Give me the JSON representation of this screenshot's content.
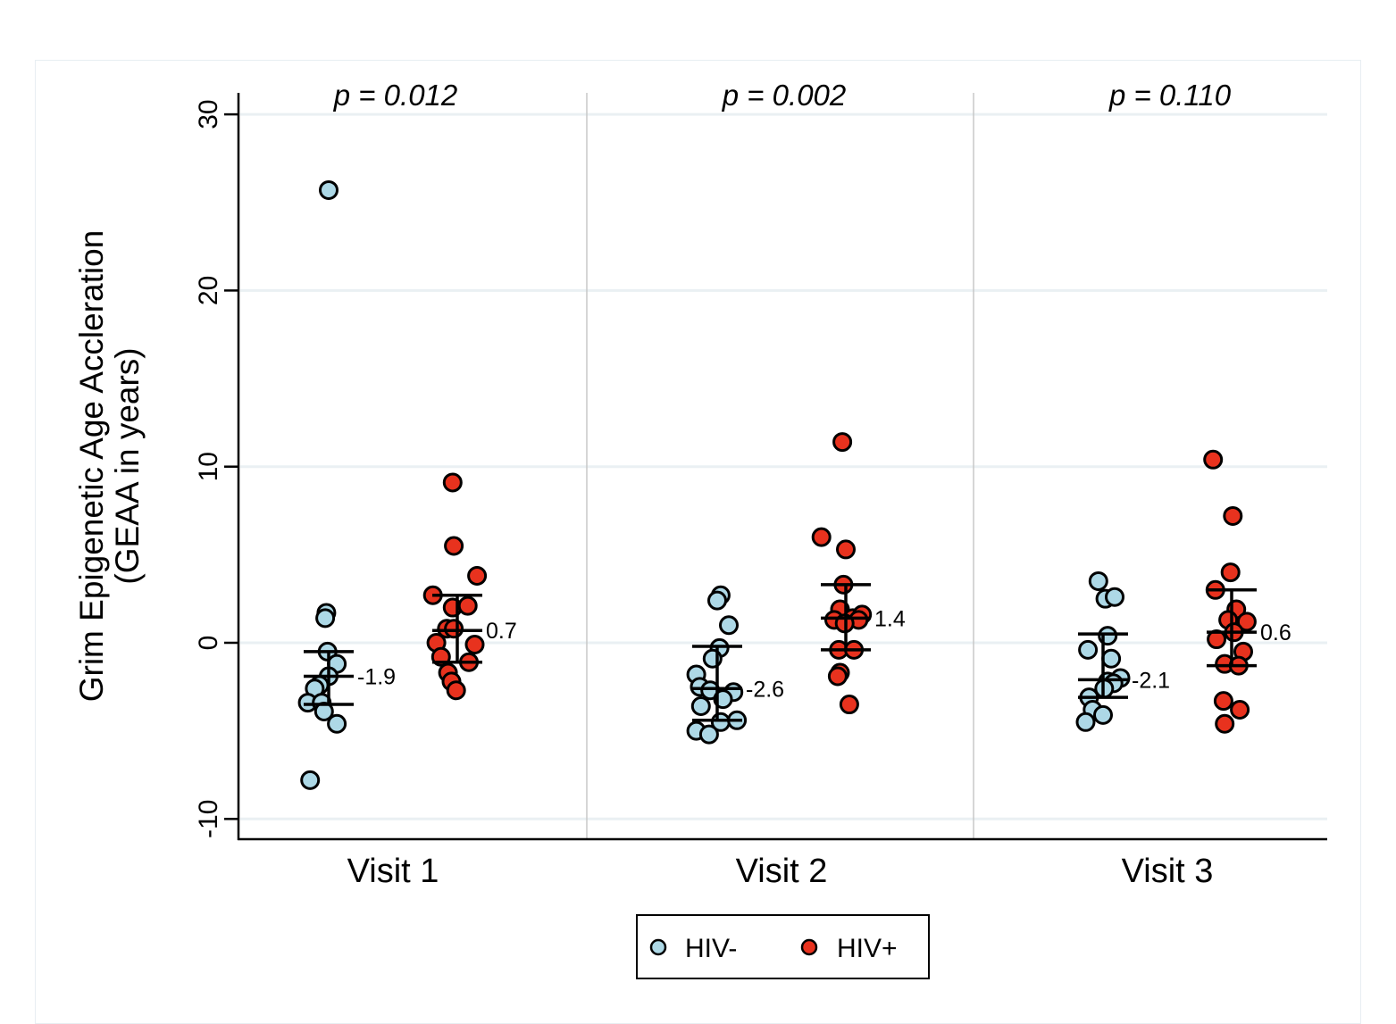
{
  "chart_data": {
    "type": "scatter",
    "title": "",
    "xlabel": "",
    "ylabel": [
      "Grim Epigenetic Age Accleration",
      "(GEAA in years)"
    ],
    "ylim": [
      -11,
      31
    ],
    "yticks": [
      -10,
      0,
      10,
      20,
      30
    ],
    "ytick_labels": [
      "-10",
      "0",
      "10",
      "20",
      "30"
    ],
    "grid": true,
    "categories": [
      "Visit 1",
      "Visit 2",
      "Visit 3"
    ],
    "p_values": [
      "p = 0.012",
      "p = 0.002",
      "p = 0.110"
    ],
    "legend": {
      "position": "bottom-center",
      "entries": [
        "HIV-",
        "HIV+"
      ]
    },
    "colors": {
      "HIV-": "#add8e6",
      "HIV+": "#e8321e",
      "outline": "#000000",
      "grid": "#eaf0f3",
      "separator": "#c8c8c8"
    },
    "series": [
      {
        "name": "HIV-",
        "groups": [
          {
            "visit": "Visit 1",
            "mean": -1.9,
            "mean_label": "-1.9",
            "ci": [
              -3.5,
              -0.5
            ],
            "points": [
              {
                "jitter": 0.0,
                "y": 25.7
              },
              {
                "jitter": -0.2,
                "y": 1.7
              },
              {
                "jitter": -0.3,
                "y": 1.4
              },
              {
                "jitter": -0.1,
                "y": -0.5
              },
              {
                "jitter": 0.7,
                "y": -1.2
              },
              {
                "jitter": 0.0,
                "y": -1.9
              },
              {
                "jitter": -0.8,
                "y": -2.4
              },
              {
                "jitter": -1.2,
                "y": -2.6
              },
              {
                "jitter": -1.8,
                "y": -3.4
              },
              {
                "jitter": -0.6,
                "y": -3.4
              },
              {
                "jitter": -0.4,
                "y": -3.9
              },
              {
                "jitter": 0.7,
                "y": -4.6
              },
              {
                "jitter": -1.6,
                "y": -7.8
              }
            ]
          },
          {
            "visit": "Visit 2",
            "mean": -2.6,
            "mean_label": "-2.6",
            "ci": [
              -4.4,
              -0.2
            ],
            "points": [
              {
                "jitter": 0.3,
                "y": 2.7
              },
              {
                "jitter": 0.0,
                "y": 2.4
              },
              {
                "jitter": 1.0,
                "y": 1.0
              },
              {
                "jitter": 0.2,
                "y": -0.3
              },
              {
                "jitter": -0.4,
                "y": -0.9
              },
              {
                "jitter": -1.8,
                "y": -1.8
              },
              {
                "jitter": -1.5,
                "y": -2.5
              },
              {
                "jitter": -0.6,
                "y": -2.7
              },
              {
                "jitter": 1.4,
                "y": -2.8
              },
              {
                "jitter": 0.5,
                "y": -3.2
              },
              {
                "jitter": -1.4,
                "y": -3.6
              },
              {
                "jitter": 0.3,
                "y": -4.5
              },
              {
                "jitter": 1.7,
                "y": -4.4
              },
              {
                "jitter": -1.8,
                "y": -5.0
              },
              {
                "jitter": -0.7,
                "y": -5.2
              }
            ]
          },
          {
            "visit": "Visit 3",
            "mean": -2.1,
            "mean_label": "-2.1",
            "ci": [
              -3.1,
              0.5
            ],
            "points": [
              {
                "jitter": -0.4,
                "y": 3.5
              },
              {
                "jitter": 0.2,
                "y": 2.5
              },
              {
                "jitter": 1.0,
                "y": 2.6
              },
              {
                "jitter": 0.4,
                "y": 0.4
              },
              {
                "jitter": -1.3,
                "y": -0.4
              },
              {
                "jitter": 0.7,
                "y": -0.9
              },
              {
                "jitter": 1.5,
                "y": -2.0
              },
              {
                "jitter": 0.4,
                "y": -2.2
              },
              {
                "jitter": 0.9,
                "y": -2.3
              },
              {
                "jitter": 0.1,
                "y": -2.6
              },
              {
                "jitter": -1.2,
                "y": -3.1
              },
              {
                "jitter": -0.9,
                "y": -3.8
              },
              {
                "jitter": 0.0,
                "y": -4.1
              },
              {
                "jitter": -1.5,
                "y": -4.5
              }
            ]
          }
        ]
      },
      {
        "name": "HIV+",
        "groups": [
          {
            "visit": "Visit 1",
            "mean": 0.7,
            "mean_label": "0.7",
            "ci": [
              -1.1,
              2.7
            ],
            "points": [
              {
                "jitter": -0.4,
                "y": 9.1
              },
              {
                "jitter": -0.3,
                "y": 5.5
              },
              {
                "jitter": 1.7,
                "y": 3.8
              },
              {
                "jitter": -2.1,
                "y": 2.7
              },
              {
                "jitter": -0.4,
                "y": 2.0
              },
              {
                "jitter": 0.9,
                "y": 2.1
              },
              {
                "jitter": -0.9,
                "y": 0.8
              },
              {
                "jitter": -0.3,
                "y": 0.8
              },
              {
                "jitter": -1.8,
                "y": 0.0
              },
              {
                "jitter": 1.5,
                "y": -0.1
              },
              {
                "jitter": -1.4,
                "y": -0.8
              },
              {
                "jitter": 1.0,
                "y": -1.1
              },
              {
                "jitter": -0.8,
                "y": -1.7
              },
              {
                "jitter": -0.5,
                "y": -2.2
              },
              {
                "jitter": -0.1,
                "y": -2.7
              }
            ]
          },
          {
            "visit": "Visit 2",
            "mean": 1.4,
            "mean_label": "1.4",
            "ci": [
              -0.4,
              3.3
            ],
            "points": [
              {
                "jitter": -0.3,
                "y": 11.4
              },
              {
                "jitter": -2.1,
                "y": 6.0
              },
              {
                "jitter": 0.0,
                "y": 5.3
              },
              {
                "jitter": -0.2,
                "y": 3.3
              },
              {
                "jitter": -0.5,
                "y": 1.9
              },
              {
                "jitter": -1.0,
                "y": 1.3
              },
              {
                "jitter": 0.6,
                "y": 1.4
              },
              {
                "jitter": 1.4,
                "y": 1.6
              },
              {
                "jitter": 1.1,
                "y": 1.3
              },
              {
                "jitter": -0.1,
                "y": 1.1
              },
              {
                "jitter": -0.6,
                "y": -0.4
              },
              {
                "jitter": 0.7,
                "y": -0.4
              },
              {
                "jitter": -0.5,
                "y": -1.7
              },
              {
                "jitter": -0.7,
                "y": -1.9
              },
              {
                "jitter": 0.3,
                "y": -3.5
              }
            ]
          },
          {
            "visit": "Visit 3",
            "mean": 0.6,
            "mean_label": "0.6",
            "ci": [
              -1.3,
              3.0
            ],
            "points": [
              {
                "jitter": -1.6,
                "y": 10.4
              },
              {
                "jitter": 0.1,
                "y": 7.2
              },
              {
                "jitter": -0.1,
                "y": 4.0
              },
              {
                "jitter": -1.4,
                "y": 3.0
              },
              {
                "jitter": 0.4,
                "y": 1.9
              },
              {
                "jitter": -0.3,
                "y": 1.3
              },
              {
                "jitter": 1.3,
                "y": 1.2
              },
              {
                "jitter": 0.2,
                "y": 0.6
              },
              {
                "jitter": -1.3,
                "y": 0.2
              },
              {
                "jitter": 1.0,
                "y": -0.5
              },
              {
                "jitter": -0.6,
                "y": -1.2
              },
              {
                "jitter": 0.6,
                "y": -1.3
              },
              {
                "jitter": -0.7,
                "y": -3.3
              },
              {
                "jitter": 0.7,
                "y": -3.8
              },
              {
                "jitter": -0.6,
                "y": -4.6
              }
            ]
          }
        ]
      }
    ]
  }
}
